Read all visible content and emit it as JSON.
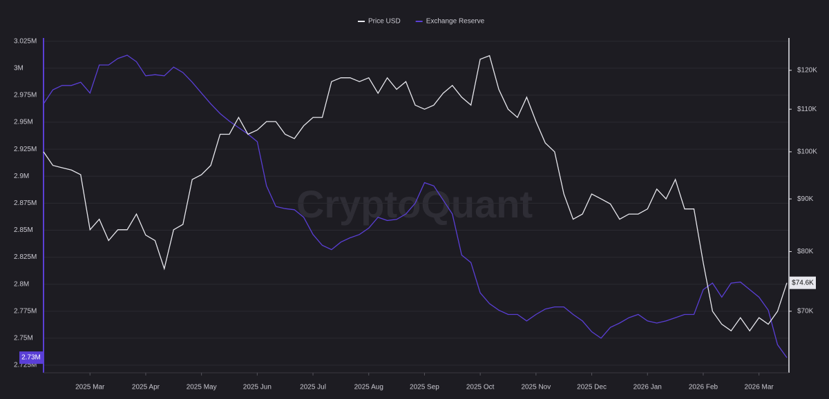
{
  "chart_data": {
    "type": "line",
    "watermark": "CryptoQuant",
    "categories": [
      null,
      null,
      null,
      null,
      null,
      "2025 Mar",
      null,
      null,
      null,
      null,
      null,
      "2025 Apr",
      null,
      null,
      null,
      null,
      null,
      "2025 May",
      null,
      null,
      null,
      null,
      null,
      "2025 Jun",
      null,
      null,
      null,
      null,
      null,
      "2025 Jul",
      null,
      null,
      null,
      null,
      null,
      "2025 Aug",
      null,
      null,
      null,
      null,
      null,
      "2025 Sep",
      null,
      null,
      null,
      null,
      null,
      "2025 Oct",
      null,
      null,
      null,
      null,
      null,
      "2025 Nov",
      null,
      null,
      null,
      null,
      null,
      "2025 Dec",
      null,
      null,
      null,
      null,
      null,
      "2026 Jan",
      null,
      null,
      null,
      null,
      null,
      "2026 Feb",
      null,
      null,
      null,
      null,
      null,
      "2026 Mar",
      null,
      null,
      null
    ],
    "series": [
      {
        "name": "Price USD",
        "color": "#e8e8ee",
        "axis": "y2",
        "last_label": "$74.6K",
        "values": [
          100000,
          97000,
          96500,
          96000,
          95000,
          84000,
          86000,
          82000,
          84000,
          84000,
          87000,
          83000,
          82000,
          77000,
          84000,
          85000,
          94000,
          95000,
          97000,
          104000,
          104000,
          108000,
          104000,
          105000,
          107000,
          107000,
          104000,
          103000,
          106000,
          108000,
          108000,
          117000,
          118000,
          118000,
          117000,
          118000,
          114000,
          118000,
          115000,
          117000,
          111000,
          110000,
          111000,
          114000,
          116000,
          113000,
          111000,
          123000,
          124000,
          115000,
          110000,
          108000,
          113000,
          107000,
          102000,
          100000,
          91000,
          86000,
          87000,
          91000,
          90000,
          89000,
          86000,
          87000,
          87000,
          88000,
          92000,
          90000,
          94000,
          88000,
          88000,
          78000,
          70000,
          68000,
          67000,
          69000,
          67000,
          69000,
          68000,
          70000,
          74600
        ]
      },
      {
        "name": "Exchange Reserve",
        "color": "#5a3fd6",
        "axis": "y",
        "last_label": "2.73M",
        "values": [
          2967000,
          2980000,
          2984000,
          2984000,
          2987000,
          2977000,
          3003000,
          3003000,
          3009000,
          3012000,
          3006000,
          2993000,
          2994000,
          2993000,
          3001000,
          2996000,
          2987000,
          2977000,
          2967000,
          2958000,
          2951000,
          2945000,
          2939000,
          2932000,
          2891000,
          2872000,
          2870000,
          2869000,
          2862000,
          2846000,
          2836000,
          2832000,
          2839000,
          2843000,
          2846000,
          2852000,
          2862000,
          2859000,
          2860000,
          2865000,
          2875000,
          2894000,
          2891000,
          2878000,
          2865000,
          2827000,
          2820000,
          2792000,
          2782000,
          2776000,
          2772000,
          2772000,
          2766000,
          2772000,
          2777000,
          2779000,
          2779000,
          2772000,
          2766000,
          2756000,
          2750000,
          2760000,
          2764000,
          2769000,
          2772000,
          2766000,
          2764000,
          2766000,
          2769000,
          2772000,
          2772000,
          2795000,
          2801000,
          2788000,
          2801000,
          2802000,
          2795000,
          2788000,
          2776000,
          2744000,
          2732000
        ]
      }
    ],
    "ylim": [
      2718000,
      3028000
    ],
    "yticks": [
      {
        "value": 2725000,
        "label": "2.725M"
      },
      {
        "value": 2750000,
        "label": "2.75M"
      },
      {
        "value": 2775000,
        "label": "2.775M"
      },
      {
        "value": 2800000,
        "label": "2.8M"
      },
      {
        "value": 2825000,
        "label": "2.825M"
      },
      {
        "value": 2850000,
        "label": "2.85M"
      },
      {
        "value": 2875000,
        "label": "2.875M"
      },
      {
        "value": 2900000,
        "label": "2.9M"
      },
      {
        "value": 2925000,
        "label": "2.925M"
      },
      {
        "value": 2950000,
        "label": "2.95M"
      },
      {
        "value": 2975000,
        "label": "2.975M"
      },
      {
        "value": 3000000,
        "label": "3M"
      },
      {
        "value": 3025000,
        "label": "3.025M"
      }
    ],
    "y2lim": [
      61000,
      129000
    ],
    "y2log": true,
    "y2ticks": [
      {
        "value": 70000,
        "label": "$70K"
      },
      {
        "value": 80000,
        "label": "$80K"
      },
      {
        "value": 90000,
        "label": "$90K"
      },
      {
        "value": 100000,
        "label": "$100K"
      },
      {
        "value": 110000,
        "label": "$110K"
      },
      {
        "value": 120000,
        "label": "$120K"
      }
    ],
    "grid": true,
    "legend": "top"
  }
}
